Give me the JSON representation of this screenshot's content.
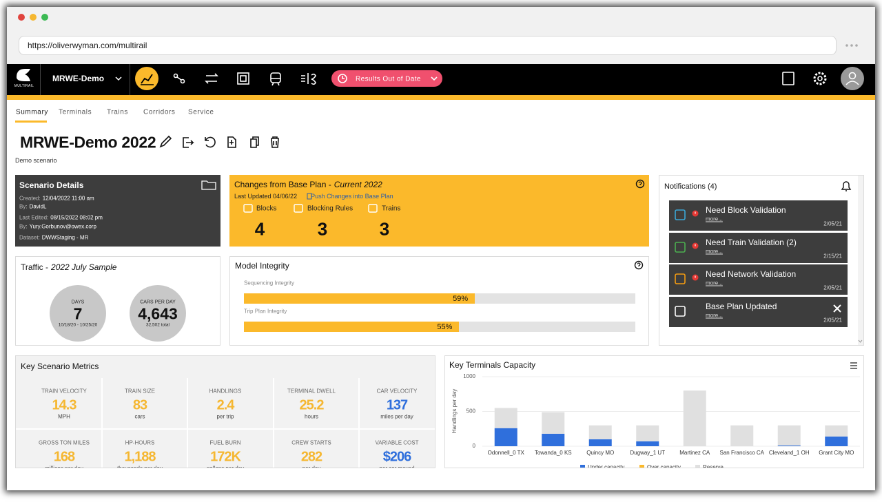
{
  "browser": {
    "url": "https://oliverwyman.com/multirail"
  },
  "nav": {
    "logo": "MULTIRAIL",
    "project": "MRWE-Demo",
    "status": "Results Out of Date"
  },
  "tabs": [
    "Summary",
    "Terminals",
    "Trains",
    "Corridors",
    "Service"
  ],
  "scenario": {
    "title": "MRWE-Demo 2022",
    "description": "Demo scenario"
  },
  "scenario_details": {
    "title": "Scenario Details",
    "fields": [
      {
        "label": "Created:",
        "value": "12/04/2022 11:00 am"
      },
      {
        "label": "By:",
        "value": "DavidL"
      },
      {
        "label": "Last Edited:",
        "value": "08/15/2022 08:02 pm"
      },
      {
        "label": "By:",
        "value": "Yury.Gorbunov@owex.corp"
      },
      {
        "label": "Dataset:",
        "value": "DWWStaging - MR"
      }
    ]
  },
  "changes": {
    "title": "Changes from Base Plan -",
    "scenario": "Current 2022",
    "last_updated": "Last Updated 04/06/22",
    "push_link": "Push Changes into Base Plan",
    "items": [
      {
        "label": "Blocks",
        "value": 4
      },
      {
        "label": "Blocking Rules",
        "value": 3
      },
      {
        "label": "Trains",
        "value": 3
      }
    ]
  },
  "traffic": {
    "title": "Traffic -",
    "sample": "2022 July Sample",
    "stats": [
      {
        "label": "DAYS",
        "value": 7,
        "detail": "10/18/20 - 10/25/20"
      },
      {
        "label": "CARS PER DAY",
        "value": "4,643",
        "detail": "32,502 total"
      }
    ]
  },
  "model_integrity": {
    "title": "Model Integrity",
    "xlim": [
      0,
      100
    ],
    "bars": [
      {
        "label": "Sequencing Integrity",
        "value": 59,
        "value_label": "59%"
      },
      {
        "label": "Trip Plan Integrity",
        "value": 55,
        "value_label": "55%"
      }
    ]
  },
  "notifications": {
    "title": "Notifications (4)",
    "items": [
      {
        "title": "Need Block Validation",
        "link": "more...",
        "date": "2/05/21"
      },
      {
        "title": "Need Train Validation (2)",
        "link": "more...",
        "date": "2/15/21"
      },
      {
        "title": "Need Network Validation",
        "link": "more...",
        "date": "2/05/21"
      },
      {
        "title": "Base Plan Updated",
        "link": "more...",
        "date": "2/05/21"
      }
    ]
  },
  "metrics": {
    "title": "Key Scenario Metrics",
    "items": [
      {
        "label": "TRAIN VELOCITY",
        "value": 14.3,
        "unit": "MPH",
        "color": "#f5b731"
      },
      {
        "label": "TRAIN SIZE",
        "value": 83,
        "unit": "cars",
        "color": "#f5b731"
      },
      {
        "label": "HANDLINGS",
        "value": 2.4,
        "unit": "per trip",
        "color": "#f5b731"
      },
      {
        "label": "TERMINAL DWELL",
        "value": 25.2,
        "unit": "hours",
        "color": "#f5b731"
      },
      {
        "label": "CAR VELOCITY",
        "value": 137,
        "unit": "miles per day",
        "color": "#2f6fdc"
      },
      {
        "label": "GROSS TON MILES",
        "value": 168,
        "unit": "millions per day",
        "color": "#f5b731"
      },
      {
        "label": "HP-HOURS",
        "value": "1,188",
        "unit": "thousands per day",
        "color": "#f5b731"
      },
      {
        "label": "FUEL BURN",
        "value": "172K",
        "unit": "gallons per day",
        "color": "#f5b731"
      },
      {
        "label": "CREW STARTS",
        "value": 282,
        "unit": "per day",
        "color": "#f5b731"
      },
      {
        "label": "VARIABLE COST",
        "value": "$206",
        "unit": "per car moved",
        "color": "#2f6fdc"
      }
    ]
  },
  "chart": {
    "type": "bar",
    "stacked": true,
    "title": "Key Terminals Capacity",
    "y_label": "Handlings per day",
    "categories": [
      "Odonnell_0 TX",
      "Towanda_0 KS",
      "Quincy MO",
      "Dugway_1 UT",
      "Martinez CA",
      "San Francisco CA",
      "Cleveland_1 OH",
      "Grant City MO"
    ],
    "series": [
      {
        "name": "Under capacity",
        "color": "#2f6fdc",
        "values": [
          260,
          180,
          100,
          70,
          0,
          0,
          10,
          140
        ]
      },
      {
        "name": "Over capacity",
        "color": "#fbb92b",
        "values": [
          0,
          0,
          0,
          0,
          0,
          0,
          0,
          0
        ]
      },
      {
        "name": "Reserve",
        "color": "#e0e0e0",
        "values": [
          290,
          310,
          200,
          230,
          800,
          300,
          290,
          160
        ]
      }
    ],
    "ylim": [
      0,
      1000
    ],
    "yticks": [
      0,
      500,
      1000
    ],
    "grid": true
  }
}
